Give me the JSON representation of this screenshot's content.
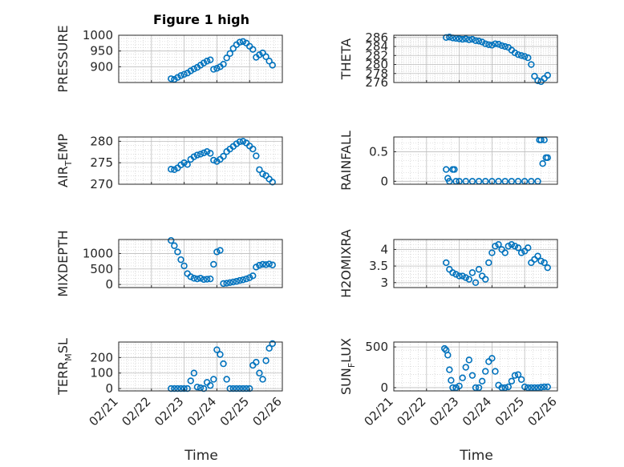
{
  "figure": {
    "title": "Figure 1 high",
    "xlabel": "Time"
  },
  "colors": {
    "marker": "#0072BD",
    "axis": "#262626",
    "grid": "#c8c8c8"
  },
  "chart_data": [
    {
      "type": "scatter",
      "ylabel": "PRESSURE",
      "ylim": [
        850,
        1000
      ],
      "yticks": [
        900,
        950,
        1000
      ],
      "xlim": [
        "02/21",
        "02/26"
      ],
      "xticks": [
        "02/21",
        "02/22",
        "02/23",
        "02/24",
        "02/25",
        "02/26"
      ],
      "grid": true,
      "x": [
        1.6,
        1.7,
        1.8,
        1.9,
        2.0,
        2.1,
        2.2,
        2.3,
        2.4,
        2.5,
        2.6,
        2.7,
        2.8,
        2.9,
        3.0,
        3.1,
        3.2,
        3.3,
        3.4,
        3.5,
        3.6,
        3.7,
        3.8,
        3.9,
        4.0,
        4.1,
        4.2,
        4.3,
        4.4,
        4.5,
        4.6,
        4.7
      ],
      "y": [
        862,
        860,
        866,
        872,
        876,
        880,
        887,
        893,
        898,
        905,
        912,
        918,
        922,
        892,
        895,
        900,
        908,
        928,
        942,
        958,
        970,
        978,
        980,
        975,
        965,
        955,
        930,
        938,
        944,
        932,
        918,
        905
      ]
    },
    {
      "type": "scatter",
      "ylabel": "THETA",
      "ylim": [
        276,
        286.5
      ],
      "yticks": [
        276,
        278,
        280,
        282,
        284,
        286
      ],
      "xlim": [
        "02/21",
        "02/26"
      ],
      "xticks": [
        "02/21",
        "02/22",
        "02/23",
        "02/24",
        "02/25",
        "02/26"
      ],
      "grid": true,
      "x": [
        1.6,
        1.7,
        1.8,
        1.9,
        2.0,
        2.1,
        2.2,
        2.3,
        2.4,
        2.5,
        2.6,
        2.7,
        2.8,
        2.9,
        3.0,
        3.1,
        3.2,
        3.3,
        3.4,
        3.5,
        3.6,
        3.7,
        3.8,
        3.9,
        4.0,
        4.1,
        4.2,
        4.3,
        4.4,
        4.5,
        4.6,
        4.7
      ],
      "y": [
        286.0,
        286.1,
        285.9,
        285.8,
        285.7,
        285.6,
        285.7,
        285.5,
        285.6,
        285.3,
        285.2,
        285.0,
        284.6,
        284.4,
        284.3,
        284.6,
        284.5,
        284.2,
        284.0,
        283.8,
        283.2,
        282.6,
        282.2,
        282.0,
        281.8,
        281.5,
        280.0,
        277.4,
        276.4,
        276.2,
        276.9,
        277.6
      ]
    },
    {
      "type": "scatter",
      "ylabel": "AIR",
      "ylabel_sub": "T",
      "ylabel_rest": "EMP",
      "ylim": [
        270,
        281
      ],
      "yticks": [
        270,
        275,
        280
      ],
      "xlim": [
        "02/21",
        "02/26"
      ],
      "xticks": [
        "02/21",
        "02/22",
        "02/23",
        "02/24",
        "02/25",
        "02/26"
      ],
      "grid": true,
      "x": [
        1.6,
        1.7,
        1.8,
        1.9,
        2.0,
        2.1,
        2.2,
        2.3,
        2.4,
        2.5,
        2.6,
        2.7,
        2.8,
        2.9,
        3.0,
        3.1,
        3.2,
        3.3,
        3.4,
        3.5,
        3.6,
        3.7,
        3.8,
        3.9,
        4.0,
        4.1,
        4.2,
        4.3,
        4.4,
        4.5,
        4.6,
        4.7
      ],
      "y": [
        273.5,
        273.4,
        273.8,
        274.5,
        275.0,
        274.6,
        275.8,
        276.4,
        276.8,
        277.0,
        277.3,
        277.6,
        277.2,
        275.6,
        275.3,
        275.8,
        276.5,
        277.6,
        278.2,
        278.8,
        279.4,
        279.9,
        280.0,
        279.6,
        278.9,
        278.2,
        276.6,
        273.4,
        272.4,
        272.0,
        271.2,
        270.5
      ]
    },
    {
      "type": "scatter",
      "ylabel": "RAINFALL",
      "ylim": [
        -0.05,
        0.75
      ],
      "yticks": [
        0,
        0.5
      ],
      "ytick_labels": [
        "0",
        "0.5"
      ],
      "xlim": [
        "02/21",
        "02/26"
      ],
      "xticks": [
        "02/21",
        "02/22",
        "02/23",
        "02/24",
        "02/25",
        "02/26"
      ],
      "grid": true,
      "x": [
        1.6,
        1.65,
        1.7,
        1.8,
        1.85,
        1.9,
        2.0,
        2.2,
        2.4,
        2.6,
        2.8,
        3.0,
        3.2,
        3.4,
        3.6,
        3.8,
        4.0,
        4.2,
        4.4,
        4.45,
        4.5,
        4.55,
        4.6,
        4.65,
        4.7
      ],
      "y": [
        0.2,
        0.05,
        0,
        0.2,
        0.2,
        0,
        0,
        0,
        0,
        0,
        0,
        0,
        0,
        0,
        0,
        0,
        0,
        0,
        0,
        0.7,
        0.7,
        0.3,
        0.7,
        0.4,
        0.4
      ]
    },
    {
      "type": "scatter",
      "ylabel": "MIXDEPTH",
      "ylim": [
        -100,
        1450
      ],
      "yticks": [
        0,
        500,
        1000
      ],
      "xlim": [
        "02/21",
        "02/26"
      ],
      "xticks": [
        "02/21",
        "02/22",
        "02/23",
        "02/24",
        "02/25",
        "02/26"
      ],
      "grid": true,
      "x": [
        1.6,
        1.7,
        1.8,
        1.9,
        2.0,
        2.1,
        2.2,
        2.3,
        2.4,
        2.5,
        2.6,
        2.7,
        2.8,
        2.9,
        3.0,
        3.1,
        3.2,
        3.3,
        3.4,
        3.5,
        3.6,
        3.7,
        3.8,
        3.9,
        4.0,
        4.1,
        4.2,
        4.3,
        4.4,
        4.5,
        4.6,
        4.7
      ],
      "y": [
        1420,
        1250,
        1050,
        800,
        600,
        350,
        250,
        200,
        180,
        200,
        160,
        170,
        180,
        650,
        1050,
        1100,
        30,
        40,
        60,
        80,
        100,
        130,
        150,
        180,
        220,
        280,
        560,
        620,
        650,
        640,
        660,
        630
      ]
    },
    {
      "type": "scatter",
      "ylabel": "H2OMIXRA",
      "ylim": [
        2.85,
        4.3
      ],
      "yticks": [
        3,
        3.5,
        4
      ],
      "ytick_labels": [
        "3",
        "3.5",
        "4"
      ],
      "xlim": [
        "02/21",
        "02/26"
      ],
      "xticks": [
        "02/21",
        "02/22",
        "02/23",
        "02/24",
        "02/25",
        "02/26"
      ],
      "grid": true,
      "x": [
        1.6,
        1.7,
        1.8,
        1.9,
        2.0,
        2.1,
        2.2,
        2.3,
        2.4,
        2.5,
        2.6,
        2.7,
        2.8,
        2.9,
        3.0,
        3.1,
        3.2,
        3.3,
        3.4,
        3.5,
        3.6,
        3.7,
        3.8,
        3.9,
        4.0,
        4.1,
        4.2,
        4.3,
        4.4,
        4.5,
        4.6,
        4.7
      ],
      "y": [
        3.6,
        3.4,
        3.3,
        3.25,
        3.2,
        3.2,
        3.15,
        3.1,
        3.3,
        3.0,
        3.4,
        3.2,
        3.1,
        3.6,
        3.9,
        4.1,
        4.15,
        4.0,
        3.9,
        4.1,
        4.15,
        4.1,
        4.05,
        3.9,
        3.95,
        4.05,
        3.6,
        3.7,
        3.8,
        3.65,
        3.6,
        3.45
      ]
    },
    {
      "type": "scatter",
      "ylabel": "TERR",
      "ylabel_sub": "M",
      "ylabel_rest": "SL",
      "ylim": [
        -15,
        300
      ],
      "yticks": [
        0,
        100,
        200
      ],
      "xlim": [
        "02/21",
        "02/26"
      ],
      "xticks": [
        "02/21",
        "02/22",
        "02/23",
        "02/24",
        "02/25",
        "02/26"
      ],
      "grid": true,
      "x": [
        1.6,
        1.7,
        1.8,
        1.9,
        2.0,
        2.1,
        2.2,
        2.3,
        2.4,
        2.5,
        2.6,
        2.7,
        2.8,
        2.9,
        3.0,
        3.1,
        3.2,
        3.3,
        3.4,
        3.5,
        3.6,
        3.7,
        3.8,
        3.9,
        4.0,
        4.1,
        4.2,
        4.3,
        4.4,
        4.5,
        4.6,
        4.7
      ],
      "y": [
        0,
        0,
        0,
        0,
        0,
        0,
        50,
        100,
        10,
        5,
        0,
        40,
        20,
        60,
        250,
        220,
        160,
        60,
        0,
        0,
        0,
        0,
        0,
        0,
        0,
        150,
        170,
        100,
        60,
        180,
        260,
        290
      ]
    },
    {
      "type": "scatter",
      "ylabel": "SUN",
      "ylabel_sub": "F",
      "ylabel_rest": "LUX",
      "ylim": [
        -40,
        560
      ],
      "yticks": [
        0,
        500
      ],
      "xlim": [
        "02/21",
        "02/26"
      ],
      "xticks": [
        "02/21",
        "02/22",
        "02/23",
        "02/24",
        "02/25",
        "02/26"
      ],
      "grid": true,
      "x": [
        1.55,
        1.6,
        1.65,
        1.7,
        1.75,
        1.8,
        1.9,
        2.0,
        2.1,
        2.2,
        2.3,
        2.4,
        2.5,
        2.6,
        2.7,
        2.8,
        2.9,
        3.0,
        3.1,
        3.2,
        3.3,
        3.4,
        3.5,
        3.6,
        3.7,
        3.8,
        3.9,
        4.0,
        4.1,
        4.2,
        4.3,
        4.4,
        4.5,
        4.6,
        4.7
      ],
      "y": [
        480,
        460,
        400,
        220,
        90,
        0,
        0,
        20,
        120,
        250,
        340,
        150,
        0,
        0,
        80,
        200,
        320,
        360,
        200,
        30,
        0,
        0,
        10,
        80,
        150,
        160,
        100,
        10,
        0,
        0,
        0,
        0,
        5,
        10,
        10
      ]
    }
  ]
}
